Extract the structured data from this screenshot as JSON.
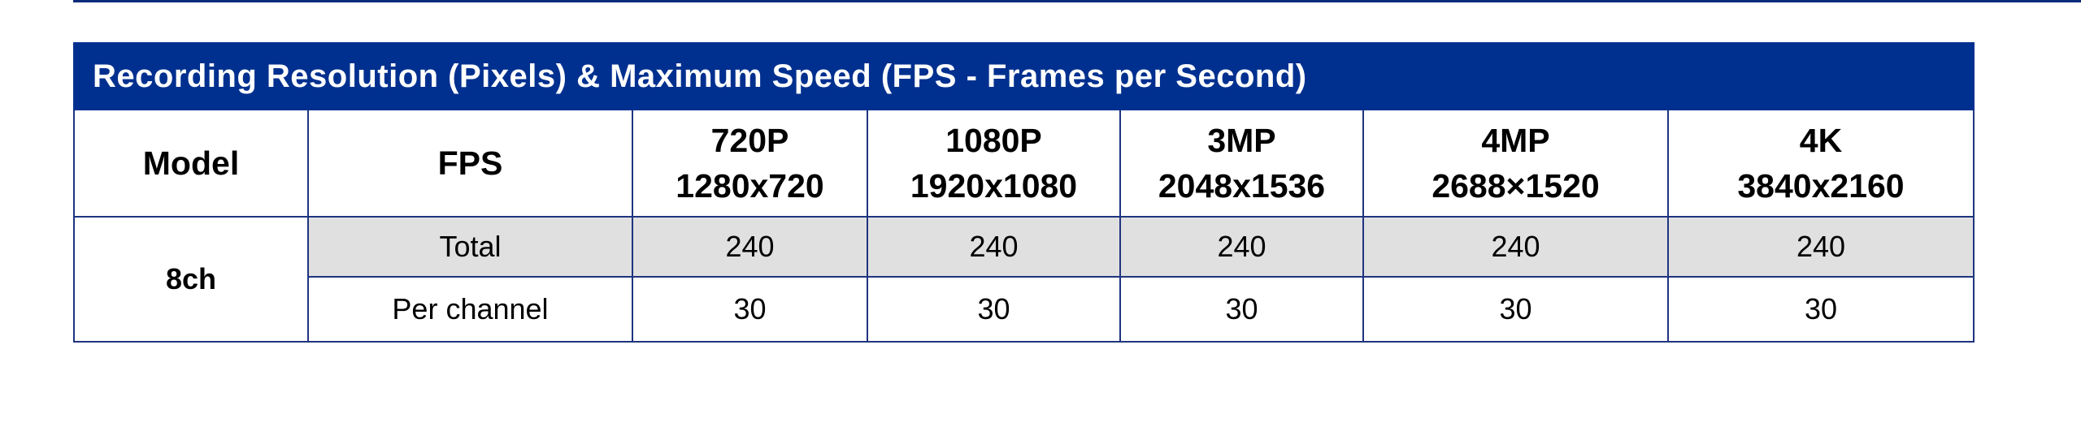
{
  "table": {
    "title": "Recording Resolution (Pixels) & Maximum Speed (FPS - Frames per Second)",
    "headers": {
      "model": "Model",
      "fps": "FPS",
      "columns": [
        {
          "name": "720P",
          "res": "1280x720"
        },
        {
          "name": "1080P",
          "res": "1920x1080"
        },
        {
          "name": "3MP",
          "res": "2048x1536"
        },
        {
          "name": "4MP",
          "res": "2688×1520"
        },
        {
          "name": "4K",
          "res": "3840x2160"
        }
      ]
    },
    "model": "8ch",
    "rows": [
      {
        "label": "Total",
        "values": [
          "240",
          "240",
          "240",
          "240",
          "240"
        ]
      },
      {
        "label": "Per channel",
        "values": [
          "30",
          "30",
          "30",
          "30",
          "30"
        ]
      }
    ]
  }
}
